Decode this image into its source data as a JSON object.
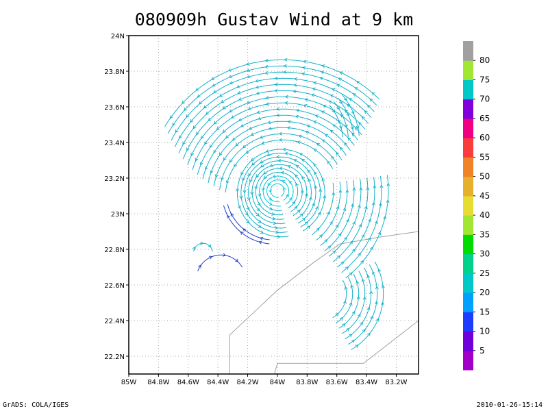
{
  "chart_data": {
    "type": "streamline",
    "title": "080909h Gustav Wind at 9 km",
    "xlabel": "",
    "ylabel": "",
    "xlim": [
      -85.0,
      -83.05
    ],
    "ylim": [
      22.1,
      24.0
    ],
    "x_ticks": [
      {
        "value": -85.0,
        "label": "85W"
      },
      {
        "value": -84.8,
        "label": "84.8W"
      },
      {
        "value": -84.6,
        "label": "84.6W"
      },
      {
        "value": -84.4,
        "label": "84.4W"
      },
      {
        "value": -84.2,
        "label": "84.2W"
      },
      {
        "value": -84.0,
        "label": "84W"
      },
      {
        "value": -83.8,
        "label": "83.8W"
      },
      {
        "value": -83.6,
        "label": "83.6W"
      },
      {
        "value": -83.4,
        "label": "83.4W"
      },
      {
        "value": -83.2,
        "label": "83.2W"
      }
    ],
    "y_ticks": [
      {
        "value": 22.2,
        "label": "22.2N"
      },
      {
        "value": 22.4,
        "label": "22.4N"
      },
      {
        "value": 22.6,
        "label": "22.6N"
      },
      {
        "value": 22.8,
        "label": "22.8N"
      },
      {
        "value": 23.0,
        "label": "23N"
      },
      {
        "value": 23.2,
        "label": "23.2N"
      },
      {
        "value": 23.4,
        "label": "23.4N"
      },
      {
        "value": 23.6,
        "label": "23.6N"
      },
      {
        "value": 23.8,
        "label": "23.8N"
      },
      {
        "value": 24.0,
        "label": "24N"
      }
    ],
    "grid": true,
    "vortex_center": [
      -84.0,
      23.13
    ],
    "colorbar": {
      "labels": [
        "5",
        "10",
        "15",
        "20",
        "25",
        "30",
        "35",
        "40",
        "45",
        "50",
        "55",
        "60",
        "65",
        "70",
        "75",
        "80"
      ],
      "colors": [
        "#a000c8",
        "#6e00dc",
        "#1e3cff",
        "#00a0ff",
        "#00c8c8",
        "#00d28c",
        "#00dc00",
        "#a0e632",
        "#e6dc32",
        "#e6af2d",
        "#f08228",
        "#fa3c3c",
        "#f00082",
        "#8200dc",
        "#00c8c8",
        "#a0e632",
        "#a0a0a0"
      ]
    },
    "coastline": [
      [
        [
          -84.32,
          22.1
        ],
        [
          -84.32,
          22.32
        ],
        [
          -84.0,
          22.57
        ],
        [
          -83.75,
          22.73
        ],
        [
          -83.58,
          22.83
        ],
        [
          -83.3,
          22.87
        ],
        [
          -83.05,
          22.9
        ]
      ],
      [
        [
          -84.02,
          22.1
        ],
        [
          -84.0,
          22.16
        ],
        [
          -83.42,
          22.16
        ],
        [
          -83.05,
          22.4
        ]
      ]
    ]
  },
  "footer": {
    "left": "GrADS: COLA/IGES",
    "right": "2010-01-26-15:14"
  }
}
